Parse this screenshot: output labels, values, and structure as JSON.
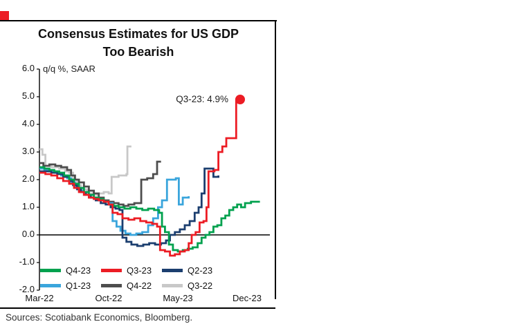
{
  "brand": {
    "accent_red": "#ec1c24"
  },
  "sources": "Sources: Scotiabank Economics, Bloomberg.",
  "legend": {
    "items": [
      "Q4-23",
      "Q3-23",
      "Q2-23",
      "Q1-23",
      "Q4-22",
      "Q3-22"
    ]
  },
  "chart_data": {
    "type": "line",
    "title": "Consensus Estimates for US GDP Too Bearish",
    "title_lines": [
      "Consensus Estimates for US GDP",
      "Too Bearish"
    ],
    "unit_label": "q/q %, SAAR",
    "grid": false,
    "legend_position": "inside-bottom-left",
    "x_axis": {
      "unit": "months since Mar-2022",
      "ticks": [
        {
          "label": "Mar-22",
          "x": 0
        },
        {
          "label": "Oct-22",
          "x": 7
        },
        {
          "label": "May-23",
          "x": 14
        },
        {
          "label": "Dec-23",
          "x": 21
        }
      ]
    },
    "y_axis": {
      "min": -2.0,
      "max": 6.0,
      "step": 1.0,
      "tick_labels": [
        "6.0",
        "5.0",
        "4.0",
        "3.0",
        "2.0",
        "1.0",
        "0.0",
        "-1.0",
        "-2.0"
      ]
    },
    "annotation": {
      "text": "Q3-23: 4.9%",
      "x": 20.3,
      "y": 4.9
    },
    "marker": {
      "series": "Q3-23",
      "x": 20.3,
      "y": 4.9,
      "radius": 7
    },
    "draw_order": [
      "Q3-22",
      "Q4-22",
      "Q1-23",
      "Q2-23",
      "Q4-23",
      "Q3-23"
    ],
    "series": [
      {
        "name": "Q4-23",
        "color": "#00a14e",
        "points": [
          [
            0,
            2.45
          ],
          [
            0.5,
            2.4
          ],
          [
            1,
            2.35
          ],
          [
            1.5,
            2.3
          ],
          [
            2,
            2.25
          ],
          [
            2.5,
            2.15
          ],
          [
            3,
            2.0
          ],
          [
            3.5,
            1.85
          ],
          [
            4,
            1.7
          ],
          [
            4.5,
            1.55
          ],
          [
            5,
            1.45
          ],
          [
            5.5,
            1.35
          ],
          [
            6,
            1.3
          ],
          [
            6.5,
            1.2
          ],
          [
            7,
            1.1
          ],
          [
            7.5,
            1.05
          ],
          [
            8,
            1.0
          ],
          [
            8.6,
            0.95
          ],
          [
            9.2,
            1.0
          ],
          [
            9.8,
            0.95
          ],
          [
            10.4,
            0.9
          ],
          [
            11,
            0.95
          ],
          [
            11.6,
            0.9
          ],
          [
            12.1,
            0.8
          ],
          [
            12.4,
            0.3
          ],
          [
            12.7,
            0.1
          ],
          [
            13.1,
            -0.35
          ],
          [
            13.5,
            -0.55
          ],
          [
            14,
            -0.6
          ],
          [
            14.5,
            -0.55
          ],
          [
            15,
            -0.5
          ],
          [
            15.5,
            -0.45
          ],
          [
            16,
            -0.3
          ],
          [
            16.4,
            -0.1
          ],
          [
            16.8,
            0.0
          ],
          [
            17.2,
            0.1
          ],
          [
            17.6,
            0.3
          ],
          [
            18,
            0.35
          ],
          [
            18.4,
            0.6
          ],
          [
            18.8,
            0.7
          ],
          [
            19.2,
            0.9
          ],
          [
            19.6,
            1.0
          ],
          [
            20,
            1.1
          ],
          [
            20.4,
            1.0
          ],
          [
            20.8,
            1.15
          ],
          [
            21.4,
            1.2
          ],
          [
            22.3,
            1.2
          ]
        ]
      },
      {
        "name": "Q3-23",
        "color": "#ec1c24",
        "points": [
          [
            0,
            2.25
          ],
          [
            0.6,
            2.2
          ],
          [
            1.2,
            2.15
          ],
          [
            1.8,
            2.05
          ],
          [
            2.4,
            1.95
          ],
          [
            3,
            1.85
          ],
          [
            3.5,
            1.7
          ],
          [
            4,
            1.55
          ],
          [
            4.5,
            1.45
          ],
          [
            5,
            1.35
          ],
          [
            5.5,
            1.3
          ],
          [
            6,
            1.25
          ],
          [
            6.5,
            1.2
          ],
          [
            7,
            1.1
          ],
          [
            7.4,
            0.8
          ],
          [
            7.9,
            0.75
          ],
          [
            8.4,
            0.6
          ],
          [
            9,
            0.55
          ],
          [
            9.6,
            0.6
          ],
          [
            10.2,
            0.5
          ],
          [
            10.8,
            0.45
          ],
          [
            11.4,
            0.4
          ],
          [
            11.9,
            0.3
          ],
          [
            12.2,
            -0.55
          ],
          [
            12.7,
            -0.6
          ],
          [
            13.2,
            -0.75
          ],
          [
            13.7,
            -0.7
          ],
          [
            14.2,
            -0.6
          ],
          [
            14.7,
            -0.55
          ],
          [
            15.1,
            -0.3
          ],
          [
            15.4,
            0.0
          ],
          [
            15.8,
            0.1
          ],
          [
            16.2,
            0.45
          ],
          [
            16.6,
            0.5
          ],
          [
            16.9,
            1.0
          ],
          [
            17.1,
            2.3
          ],
          [
            17.7,
            2.35
          ],
          [
            18.1,
            3.0
          ],
          [
            18.5,
            3.2
          ],
          [
            18.9,
            3.5
          ],
          [
            19.6,
            3.5
          ],
          [
            19.9,
            4.9
          ],
          [
            20.3,
            4.9
          ]
        ]
      },
      {
        "name": "Q2-23",
        "color": "#1b3e6f",
        "points": [
          [
            0,
            2.3
          ],
          [
            0.6,
            2.3
          ],
          [
            1.2,
            2.25
          ],
          [
            1.8,
            2.2
          ],
          [
            2.4,
            2.1
          ],
          [
            3,
            1.95
          ],
          [
            3.4,
            1.8
          ],
          [
            3.8,
            1.65
          ],
          [
            4.2,
            1.55
          ],
          [
            4.7,
            1.45
          ],
          [
            5.2,
            1.35
          ],
          [
            5.7,
            1.25
          ],
          [
            6.2,
            1.15
          ],
          [
            6.7,
            1.1
          ],
          [
            7.2,
            1.0
          ],
          [
            7.7,
            0.95
          ],
          [
            8.1,
            0.9
          ],
          [
            8.4,
            -0.1
          ],
          [
            8.8,
            -0.25
          ],
          [
            9.3,
            -0.35
          ],
          [
            9.9,
            -0.4
          ],
          [
            10.5,
            -0.35
          ],
          [
            11.1,
            -0.3
          ],
          [
            11.7,
            -0.35
          ],
          [
            12.3,
            -0.3
          ],
          [
            12.8,
            -0.2
          ],
          [
            13.2,
            0.0
          ],
          [
            13.7,
            0.1
          ],
          [
            14.2,
            0.2
          ],
          [
            14.7,
            0.35
          ],
          [
            15.2,
            0.5
          ],
          [
            15.7,
            0.8
          ],
          [
            16.1,
            1.0
          ],
          [
            16.4,
            1.5
          ],
          [
            16.7,
            2.4
          ],
          [
            17.4,
            2.4
          ],
          [
            17.6,
            2.1
          ],
          [
            18.1,
            2.15
          ]
        ]
      },
      {
        "name": "Q1-23",
        "color": "#3aa5dc",
        "points": [
          [
            0,
            2.4
          ],
          [
            0.5,
            2.35
          ],
          [
            1,
            2.3
          ],
          [
            1.6,
            2.25
          ],
          [
            2.2,
            2.15
          ],
          [
            2.8,
            2.05
          ],
          [
            3.2,
            1.9
          ],
          [
            3.6,
            1.75
          ],
          [
            4,
            1.6
          ],
          [
            4.5,
            1.45
          ],
          [
            5,
            1.35
          ],
          [
            5.5,
            1.3
          ],
          [
            6,
            1.25
          ],
          [
            6.5,
            1.2
          ],
          [
            7,
            1.15
          ],
          [
            7.4,
            0.5
          ],
          [
            7.8,
            0.3
          ],
          [
            8.2,
            0.15
          ],
          [
            8.7,
            0.05
          ],
          [
            9.2,
            0.0
          ],
          [
            9.8,
            0.05
          ],
          [
            10.4,
            0.1
          ],
          [
            11,
            0.35
          ],
          [
            11.5,
            0.6
          ],
          [
            12,
            1.0
          ],
          [
            12.4,
            1.25
          ],
          [
            12.9,
            2.0
          ],
          [
            13.8,
            2.05
          ],
          [
            14.1,
            1.1
          ],
          [
            14.5,
            1.35
          ],
          [
            15.1,
            1.4
          ]
        ]
      },
      {
        "name": "Q4-22",
        "color": "#4d4d4d",
        "points": [
          [
            0,
            2.6
          ],
          [
            0.4,
            2.5
          ],
          [
            1,
            2.55
          ],
          [
            1.6,
            2.5
          ],
          [
            2.2,
            2.45
          ],
          [
            2.8,
            2.35
          ],
          [
            3.2,
            2.15
          ],
          [
            3.6,
            2.0
          ],
          [
            4,
            1.9
          ],
          [
            4.5,
            1.75
          ],
          [
            5,
            1.6
          ],
          [
            5.5,
            1.5
          ],
          [
            6,
            1.35
          ],
          [
            6.5,
            1.25
          ],
          [
            7,
            1.2
          ],
          [
            7.5,
            1.15
          ],
          [
            8,
            1.1
          ],
          [
            8.5,
            1.05
          ],
          [
            9,
            1.1
          ],
          [
            9.6,
            1.15
          ],
          [
            10.3,
            2.0
          ],
          [
            10.9,
            2.05
          ],
          [
            11.5,
            2.2
          ],
          [
            11.9,
            2.65
          ],
          [
            12.3,
            2.65
          ]
        ]
      },
      {
        "name": "Q3-22",
        "color": "#c8c8c8",
        "points": [
          [
            0,
            3.1
          ],
          [
            0.3,
            2.9
          ],
          [
            0.6,
            2.5
          ],
          [
            1.2,
            2.45
          ],
          [
            2,
            2.4
          ],
          [
            2.6,
            2.3
          ],
          [
            3,
            2.25
          ],
          [
            3.4,
            2.0
          ],
          [
            3.8,
            1.8
          ],
          [
            4.2,
            1.65
          ],
          [
            4.8,
            1.5
          ],
          [
            5.4,
            1.45
          ],
          [
            6,
            1.5
          ],
          [
            6.5,
            1.55
          ],
          [
            7,
            1.5
          ],
          [
            7.3,
            2.1
          ],
          [
            8,
            2.15
          ],
          [
            8.8,
            2.2
          ],
          [
            8.9,
            3.2
          ],
          [
            9.3,
            3.2
          ]
        ]
      }
    ]
  }
}
